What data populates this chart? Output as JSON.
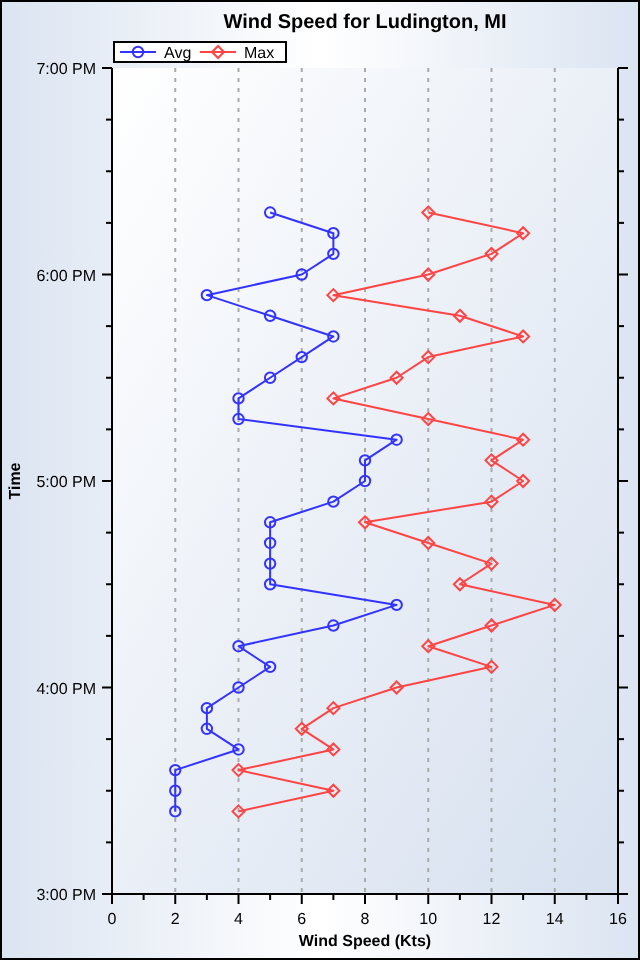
{
  "chart_data": {
    "type": "line",
    "title": "Wind Speed for Ludington, MI",
    "xlabel": "Wind Speed (Kts)",
    "ylabel": "Time",
    "orientation": "horizontal",
    "x": [
      15.4,
      15.5,
      15.6,
      15.7,
      15.8,
      15.9,
      16,
      16.1,
      16.2,
      16.3,
      16.4,
      16.5,
      16.6,
      16.7,
      16.8,
      16.9,
      17,
      17.1,
      17.2,
      17.3,
      17.4,
      17.5,
      17.6,
      17.7,
      17.8,
      17.9,
      18,
      18.1,
      18.2,
      18.3
    ],
    "series": [
      {
        "name": "Avg",
        "color": "#3333ff",
        "marker": "circle",
        "values": [
          2,
          2,
          2,
          4,
          3,
          3,
          4,
          5,
          4,
          7,
          9,
          5,
          5,
          5,
          5,
          7,
          8,
          8,
          9,
          4,
          4,
          5,
          6,
          7,
          5,
          3,
          6,
          7,
          7,
          5
        ]
      },
      {
        "name": "Max",
        "color": "#ff4444",
        "marker": "diamond",
        "values": [
          4,
          7,
          4,
          7,
          6,
          7,
          9,
          12,
          10,
          12,
          14,
          11,
          12,
          10,
          8,
          12,
          13,
          12,
          13,
          10,
          7,
          9,
          10,
          13,
          11,
          7,
          10,
          12,
          13,
          10
        ]
      }
    ],
    "xlim": [
      0,
      16
    ],
    "xticks": [
      0,
      {
        "value": 1,
        "label": null
      },
      2,
      {
        "value": 3,
        "label": null
      },
      4,
      {
        "value": 5,
        "label": null
      },
      6,
      {
        "value": 7,
        "label": null
      },
      8,
      {
        "value": 9,
        "label": null
      },
      10,
      {
        "value": 11,
        "label": null
      },
      12,
      {
        "value": 13,
        "label": null
      },
      14,
      {
        "value": 15,
        "label": null
      },
      16
    ],
    "ylim": [
      15,
      19
    ],
    "yticks": [
      {
        "value": 15,
        "label": "3:00 PM"
      },
      {
        "value": 15.25,
        "label": null
      },
      {
        "value": 15.5,
        "label": null
      },
      {
        "value": 15.75,
        "label": null
      },
      {
        "value": 16,
        "label": "4:00 PM"
      },
      {
        "value": 16.25,
        "label": null
      },
      {
        "value": 16.5,
        "label": null
      },
      {
        "value": 16.75,
        "label": null
      },
      {
        "value": 17,
        "label": "5:00 PM"
      },
      {
        "value": 17.25,
        "label": null
      },
      {
        "value": 17.5,
        "label": null
      },
      {
        "value": 17.75,
        "label": null
      },
      {
        "value": 18,
        "label": "6:00 PM"
      },
      {
        "value": 18.25,
        "label": null
      },
      {
        "value": 18.5,
        "label": null
      },
      {
        "value": 18.75,
        "label": null
      },
      {
        "value": 19,
        "label": "7:00 PM"
      }
    ],
    "grid": "x",
    "legend": "top left",
    "line_style": "solid"
  }
}
